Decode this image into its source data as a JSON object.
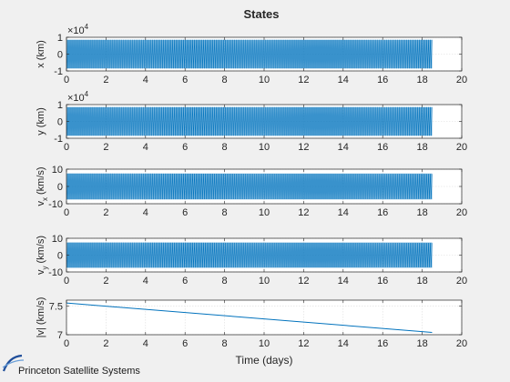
{
  "chart_data": {
    "type": "line",
    "title": "States",
    "xlabel": "Time (days)",
    "xlim": [
      0,
      20
    ],
    "xticks": [
      "0",
      "2",
      "4",
      "6",
      "8",
      "10",
      "12",
      "14",
      "16",
      "18",
      "20"
    ],
    "grid": true,
    "color": "#0072bd",
    "panels": [
      {
        "ylabel": "x (km)",
        "exponent_label": "10",
        "exponent_power": "4",
        "ylim": [
          -1,
          1
        ],
        "yticks": [
          "-1",
          "0",
          "1"
        ],
        "series": {
          "kind": "oscillation",
          "x_range": [
            0,
            18.5
          ],
          "amplitude_envelope": [
            0.85,
            0.85
          ],
          "orbits": 200
        }
      },
      {
        "ylabel": "y (km)",
        "exponent_label": "10",
        "exponent_power": "4",
        "ylim": [
          -1,
          1
        ],
        "yticks": [
          "-1",
          "0",
          "1"
        ],
        "series": {
          "kind": "oscillation",
          "x_range": [
            0,
            18.5
          ],
          "amplitude_envelope": [
            0.85,
            0.85
          ],
          "orbits": 200
        }
      },
      {
        "ylabel_main": "v",
        "ylabel_sub": "x",
        "ylabel_unit": " (km/s)",
        "ylim": [
          -10,
          10
        ],
        "yticks": [
          "-10",
          "0",
          "10"
        ],
        "series": {
          "kind": "oscillation",
          "x_range": [
            0,
            18.5
          ],
          "amplitude_envelope": [
            7.5,
            7.2
          ],
          "orbits": 200
        }
      },
      {
        "ylabel_main": "v",
        "ylabel_sub": "y",
        "ylabel_unit": " (km/s)",
        "ylim": [
          -10,
          10
        ],
        "yticks": [
          "-10",
          "0",
          "10"
        ],
        "series": {
          "kind": "oscillation",
          "x_range": [
            0,
            18.5
          ],
          "amplitude_envelope": [
            7.5,
            7.2
          ],
          "orbits": 200
        }
      },
      {
        "ylabel": "|v| (km/s)",
        "ylim": [
          7,
          7.6
        ],
        "yticks": [
          "7",
          "7.5"
        ],
        "series": {
          "kind": "line",
          "x": [
            0,
            18.5
          ],
          "y": [
            7.55,
            7.04
          ]
        }
      }
    ]
  },
  "logo": {
    "text": "Princeton Satellite Systems"
  }
}
